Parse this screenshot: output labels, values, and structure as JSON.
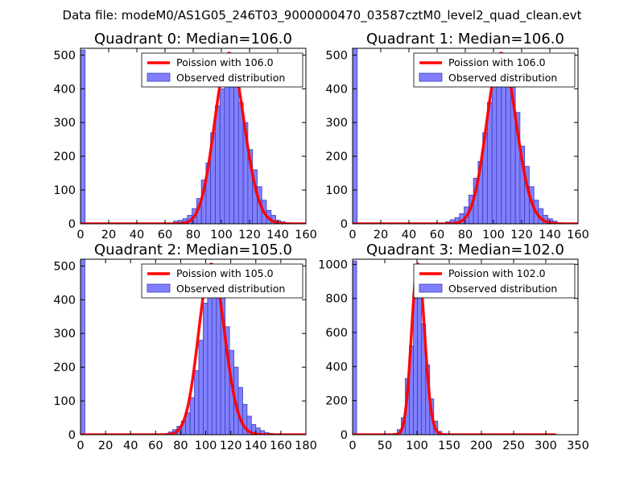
{
  "figure_title": "Data file: modeM0/AS1G05_246T03_9000000470_03587cztM0_level2_quad_clean.evt",
  "colors": {
    "bar_fill": "#8080ff",
    "bar_edge": "#3c3cb4",
    "model_line": "#ff0000",
    "model_line_alpha": "#ff8080"
  },
  "chart_data": [
    {
      "type": "bar",
      "title": "Quadrant 0: Median=106.0",
      "xlim": [
        0,
        160
      ],
      "ylim": [
        0,
        520
      ],
      "xticks": [
        0,
        20,
        40,
        60,
        80,
        100,
        120,
        140,
        160
      ],
      "yticks": [
        0,
        100,
        200,
        300,
        400,
        500
      ],
      "bin_width": 3.3,
      "bins_start": [
        0,
        66,
        69.3,
        72.6,
        75.9,
        79.2,
        82.5,
        85.8,
        89.1,
        92.4,
        95.7,
        99,
        102.3,
        105.6,
        108.9,
        112.2,
        115.5,
        118.8,
        122.1,
        125.4,
        128.7,
        132,
        135.3,
        138.6,
        141.9,
        145.2
      ],
      "counts": [
        515,
        8,
        10,
        15,
        25,
        45,
        75,
        130,
        180,
        270,
        350,
        400,
        420,
        480,
        440,
        360,
        300,
        220,
        160,
        110,
        70,
        40,
        25,
        10,
        6,
        2
      ],
      "poisson_mean": 106.0,
      "poisson_peak": 505,
      "poisson_x_range": [
        0,
        160
      ],
      "legend": [
        "Poission with 106.0",
        "Observed distribution"
      ],
      "legend_position": "upper right"
    },
    {
      "type": "bar",
      "title": "Quadrant 1: Median=106.0",
      "xlim": [
        0,
        160
      ],
      "ylim": [
        0,
        520
      ],
      "xticks": [
        0,
        20,
        40,
        60,
        80,
        100,
        120,
        140,
        160
      ],
      "yticks": [
        0,
        100,
        200,
        300,
        400,
        500
      ],
      "bin_width": 3.3,
      "bins_start": [
        0,
        66,
        69.3,
        72.6,
        75.9,
        79.2,
        82.5,
        85.8,
        89.1,
        92.4,
        95.7,
        99,
        102.3,
        105.6,
        108.9,
        112.2,
        115.5,
        118.8,
        122.1,
        125.4,
        128.7,
        132,
        135.3,
        138.6,
        141.9,
        145.2
      ],
      "counts": [
        520,
        6,
        12,
        18,
        30,
        50,
        85,
        135,
        185,
        270,
        360,
        410,
        450,
        500,
        490,
        410,
        330,
        230,
        170,
        110,
        70,
        45,
        25,
        15,
        8,
        2
      ],
      "poisson_mean": 106.0,
      "poisson_peak": 505,
      "poisson_x_range": [
        0,
        160
      ],
      "legend": [
        "Poission with 106.0",
        "Observed distribution"
      ],
      "legend_position": "upper right"
    },
    {
      "type": "bar",
      "title": "Quadrant 2: Median=105.0",
      "xlim": [
        0,
        180
      ],
      "ylim": [
        0,
        520
      ],
      "xticks": [
        0,
        20,
        40,
        60,
        80,
        100,
        120,
        140,
        160,
        180
      ],
      "yticks": [
        0,
        100,
        200,
        300,
        400,
        500
      ],
      "bin_width": 3.5,
      "bins_start": [
        0,
        66.5,
        70,
        73.5,
        77,
        80.5,
        84,
        87.5,
        91,
        94.5,
        98,
        101.5,
        105,
        108.5,
        112,
        115.5,
        119,
        122.5,
        126,
        129.5,
        133,
        136.5,
        140,
        143.5,
        147,
        150.5,
        154
      ],
      "counts": [
        525,
        3,
        8,
        15,
        25,
        40,
        65,
        110,
        190,
        280,
        390,
        420,
        470,
        480,
        430,
        320,
        250,
        200,
        140,
        90,
        55,
        30,
        20,
        12,
        6,
        4,
        2
      ],
      "poisson_mean": 105.0,
      "poisson_peak": 505,
      "poisson_x_range": [
        0,
        180
      ],
      "legend": [
        "Poission with 105.0",
        "Observed distribution"
      ],
      "legend_position": "upper right"
    },
    {
      "type": "bar",
      "title": "Quadrant 3: Median=102.0",
      "xlim": [
        0,
        350
      ],
      "ylim": [
        0,
        1030
      ],
      "xticks": [
        0,
        50,
        100,
        150,
        200,
        250,
        300,
        350
      ],
      "yticks": [
        0,
        200,
        400,
        600,
        800,
        1000
      ],
      "bin_width": 6.3,
      "bins_start": [
        0,
        63,
        69.3,
        75.6,
        81.9,
        88.2,
        94.5,
        100.8,
        107.1,
        113.4,
        119.7,
        126,
        132.3
      ],
      "counts": [
        1020,
        8,
        30,
        100,
        330,
        520,
        800,
        820,
        650,
        410,
        210,
        80,
        20
      ],
      "poisson_mean": 102.0,
      "poisson_peak": 1000,
      "poisson_x_range": [
        0,
        316
      ],
      "legend": [
        "Poission with 102.0",
        "Observed distribution"
      ],
      "legend_position": "upper right"
    }
  ]
}
